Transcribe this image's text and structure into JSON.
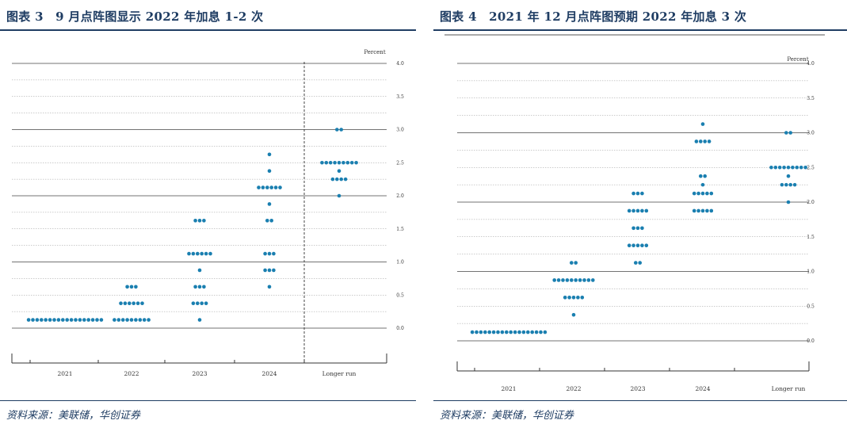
{
  "panels": [
    {
      "title": "图表 3　9 月点阵图显示 2022 年加息 1-2 次",
      "source": "资料来源：美联储，华创证券"
    },
    {
      "title": "图表 4　2021 年 12 月点阵图预期 2022 年加息 3 次",
      "source": "资料来源：美联储，华创证券"
    }
  ],
  "colors": {
    "dot": "#1a7fb0",
    "title": "#1f3d63",
    "rule": "#1f3d63",
    "grid": "#999999"
  },
  "chart_data": [
    {
      "type": "scatter",
      "title": "图表 3　9 月点阵图显示 2022 年加息 1-2 次",
      "ylabel": "Percent",
      "ylim": [
        0,
        4.0
      ],
      "yticks": [
        "0.0",
        "0.5",
        "1.0",
        "1.5",
        "2.0",
        "2.5",
        "3.0",
        "3.5",
        "4.0"
      ],
      "categories": [
        "2021",
        "2022",
        "2023",
        "2024",
        "Longer run"
      ],
      "grid": true,
      "separator_before": "Longer run",
      "points": [
        {
          "x": "2021",
          "y": 0.125,
          "count": 18
        },
        {
          "x": "2022",
          "y": 0.125,
          "count": 9
        },
        {
          "x": "2022",
          "y": 0.375,
          "count": 6
        },
        {
          "x": "2022",
          "y": 0.625,
          "count": 3
        },
        {
          "x": "2023",
          "y": 0.125,
          "count": 1
        },
        {
          "x": "2023",
          "y": 0.375,
          "count": 4
        },
        {
          "x": "2023",
          "y": 0.625,
          "count": 3
        },
        {
          "x": "2023",
          "y": 0.875,
          "count": 1
        },
        {
          "x": "2023",
          "y": 1.125,
          "count": 6
        },
        {
          "x": "2023",
          "y": 1.625,
          "count": 3
        },
        {
          "x": "2024",
          "y": 0.625,
          "count": 1
        },
        {
          "x": "2024",
          "y": 0.875,
          "count": 3
        },
        {
          "x": "2024",
          "y": 1.125,
          "count": 3
        },
        {
          "x": "2024",
          "y": 1.625,
          "count": 2
        },
        {
          "x": "2024",
          "y": 1.875,
          "count": 1
        },
        {
          "x": "2024",
          "y": 2.125,
          "count": 6
        },
        {
          "x": "2024",
          "y": 2.375,
          "count": 1
        },
        {
          "x": "2024",
          "y": 2.625,
          "count": 1
        },
        {
          "x": "Longer run",
          "y": 2.0,
          "count": 1
        },
        {
          "x": "Longer run",
          "y": 2.25,
          "count": 4
        },
        {
          "x": "Longer run",
          "y": 2.375,
          "count": 1
        },
        {
          "x": "Longer run",
          "y": 2.5,
          "count": 9
        },
        {
          "x": "Longer run",
          "y": 3.0,
          "count": 2
        }
      ]
    },
    {
      "type": "scatter",
      "title": "图表 4　2021 年 12 月点阵图预期 2022 年加息 3 次",
      "ylabel": "Percent",
      "ylim": [
        0,
        4.0
      ],
      "yticks": [
        "0.0",
        "0.5",
        "1.0",
        "1.5",
        "2.0",
        "2.5",
        "3.0",
        "3.5",
        "4.0"
      ],
      "categories": [
        "2021",
        "2022",
        "2023",
        "2024",
        "Longer run"
      ],
      "grid": true,
      "points": [
        {
          "x": "2021",
          "y": 0.125,
          "count": 18
        },
        {
          "x": "2022",
          "y": 0.375,
          "count": 1
        },
        {
          "x": "2022",
          "y": 0.625,
          "count": 5
        },
        {
          "x": "2022",
          "y": 0.875,
          "count": 10
        },
        {
          "x": "2022",
          "y": 1.125,
          "count": 2
        },
        {
          "x": "2023",
          "y": 1.125,
          "count": 2
        },
        {
          "x": "2023",
          "y": 1.375,
          "count": 5
        },
        {
          "x": "2023",
          "y": 1.625,
          "count": 3
        },
        {
          "x": "2023",
          "y": 1.875,
          "count": 5
        },
        {
          "x": "2023",
          "y": 2.125,
          "count": 3
        },
        {
          "x": "2024",
          "y": 1.875,
          "count": 5
        },
        {
          "x": "2024",
          "y": 2.125,
          "count": 5
        },
        {
          "x": "2024",
          "y": 2.25,
          "count": 1
        },
        {
          "x": "2024",
          "y": 2.375,
          "count": 2
        },
        {
          "x": "2024",
          "y": 2.875,
          "count": 4
        },
        {
          "x": "2024",
          "y": 3.125,
          "count": 1
        },
        {
          "x": "Longer run",
          "y": 2.0,
          "count": 1
        },
        {
          "x": "Longer run",
          "y": 2.25,
          "count": 4
        },
        {
          "x": "Longer run",
          "y": 2.375,
          "count": 1
        },
        {
          "x": "Longer run",
          "y": 2.5,
          "count": 9
        },
        {
          "x": "Longer run",
          "y": 3.0,
          "count": 2
        }
      ]
    }
  ]
}
